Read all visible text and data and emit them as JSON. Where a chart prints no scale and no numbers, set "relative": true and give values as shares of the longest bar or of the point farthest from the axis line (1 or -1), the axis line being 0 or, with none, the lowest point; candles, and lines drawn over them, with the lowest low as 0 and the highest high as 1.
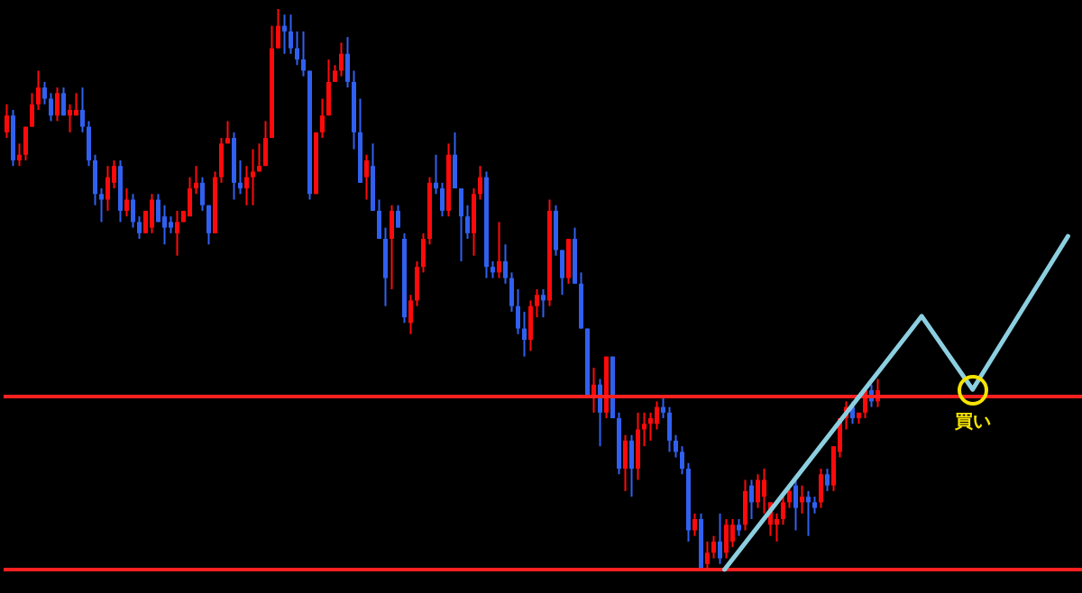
{
  "chart_data": [
    {
      "type": "candlestick",
      "relative": true,
      "grid": false,
      "categories": [
        null,
        null,
        null,
        null,
        null,
        null,
        null,
        null,
        null,
        null,
        null,
        null,
        null,
        null,
        null,
        null,
        null,
        null,
        null,
        null,
        null,
        null,
        null,
        null,
        null,
        null,
        null,
        null,
        null,
        null,
        null,
        null,
        null,
        null,
        null,
        null,
        null,
        null,
        null,
        null,
        null,
        null,
        null,
        null,
        null,
        null,
        null,
        null,
        null,
        null,
        null,
        null,
        null,
        null,
        null,
        null,
        null,
        null,
        null,
        null,
        null,
        null,
        null,
        null,
        null,
        null,
        null,
        null,
        null,
        null,
        null,
        null,
        null,
        null,
        null,
        null,
        null,
        null,
        null,
        null,
        null,
        null,
        null,
        null,
        null,
        null,
        null,
        null,
        null,
        null,
        null,
        null,
        null,
        null,
        null,
        null,
        null,
        null,
        null,
        null,
        null,
        null,
        null,
        null,
        null,
        null,
        null,
        null,
        null,
        null,
        null,
        null,
        null,
        null,
        null,
        null,
        null,
        null,
        null,
        null,
        null,
        null,
        null,
        null,
        null,
        null,
        null,
        null,
        null,
        null,
        null,
        null,
        null,
        null,
        null,
        null,
        null,
        null,
        null
      ],
      "ohlc": [
        [
          0.78,
          0.83,
          0.77,
          0.81
        ],
        [
          0.81,
          0.82,
          0.72,
          0.73
        ],
        [
          0.73,
          0.76,
          0.72,
          0.74
        ],
        [
          0.74,
          0.79,
          0.73,
          0.79
        ],
        [
          0.79,
          0.85,
          0.79,
          0.83
        ],
        [
          0.83,
          0.89,
          0.82,
          0.86
        ],
        [
          0.86,
          0.87,
          0.83,
          0.84
        ],
        [
          0.84,
          0.85,
          0.8,
          0.81
        ],
        [
          0.81,
          0.86,
          0.8,
          0.85
        ],
        [
          0.85,
          0.86,
          0.81,
          0.81
        ],
        [
          0.81,
          0.83,
          0.78,
          0.82
        ],
        [
          0.81,
          0.85,
          0.81,
          0.82
        ],
        [
          0.82,
          0.86,
          0.78,
          0.79
        ],
        [
          0.79,
          0.8,
          0.72,
          0.73
        ],
        [
          0.73,
          0.74,
          0.65,
          0.67
        ],
        [
          0.67,
          0.68,
          0.62,
          0.66
        ],
        [
          0.66,
          0.72,
          0.64,
          0.7
        ],
        [
          0.69,
          0.73,
          0.68,
          0.72
        ],
        [
          0.72,
          0.73,
          0.62,
          0.64
        ],
        [
          0.64,
          0.68,
          0.63,
          0.66
        ],
        [
          0.66,
          0.67,
          0.61,
          0.62
        ],
        [
          0.62,
          0.63,
          0.59,
          0.6
        ],
        [
          0.6,
          0.64,
          0.6,
          0.64
        ],
        [
          0.61,
          0.67,
          0.6,
          0.66
        ],
        [
          0.66,
          0.67,
          0.62,
          0.62
        ],
        [
          0.63,
          0.65,
          0.58,
          0.61
        ],
        [
          0.62,
          0.63,
          0.6,
          0.61
        ],
        [
          0.6,
          0.64,
          0.56,
          0.62
        ],
        [
          0.62,
          0.64,
          0.62,
          0.64
        ],
        [
          0.63,
          0.7,
          0.63,
          0.68
        ],
        [
          0.68,
          0.72,
          0.67,
          0.69
        ],
        [
          0.69,
          0.7,
          0.64,
          0.65
        ],
        [
          0.65,
          0.65,
          0.58,
          0.6
        ],
        [
          0.6,
          0.71,
          0.6,
          0.7
        ],
        [
          0.7,
          0.77,
          0.69,
          0.76
        ],
        [
          0.76,
          0.8,
          0.76,
          0.77
        ],
        [
          0.77,
          0.78,
          0.66,
          0.69
        ],
        [
          0.69,
          0.73,
          0.67,
          0.68
        ],
        [
          0.68,
          0.72,
          0.65,
          0.7
        ],
        [
          0.7,
          0.75,
          0.65,
          0.71
        ],
        [
          0.71,
          0.76,
          0.71,
          0.72
        ],
        [
          0.72,
          0.8,
          0.72,
          0.77
        ],
        [
          0.77,
          0.97,
          0.77,
          0.93
        ],
        [
          0.93,
          1,
          0.93,
          0.97
        ],
        [
          0.97,
          0.99,
          0.92,
          0.96
        ],
        [
          0.96,
          0.99,
          0.92,
          0.93
        ],
        [
          0.93,
          0.96,
          0.9,
          0.91
        ],
        [
          0.91,
          0.96,
          0.88,
          0.89
        ],
        [
          0.89,
          0.89,
          0.66,
          0.67
        ],
        [
          0.67,
          0.78,
          0.67,
          0.78
        ],
        [
          0.78,
          0.84,
          0.77,
          0.81
        ],
        [
          0.81,
          0.91,
          0.81,
          0.87
        ],
        [
          0.87,
          0.9,
          0.87,
          0.89
        ],
        [
          0.89,
          0.94,
          0.88,
          0.92
        ],
        [
          0.92,
          0.95,
          0.86,
          0.87
        ],
        [
          0.87,
          0.89,
          0.75,
          0.78
        ],
        [
          0.78,
          0.84,
          0.69,
          0.69
        ],
        [
          0.7,
          0.74,
          0.66,
          0.73
        ],
        [
          0.72,
          0.76,
          0.64,
          0.64
        ],
        [
          0.64,
          0.66,
          0.59,
          0.59
        ],
        [
          0.59,
          0.61,
          0.47,
          0.52
        ],
        [
          0.59,
          0.65,
          0.5,
          0.64
        ],
        [
          0.64,
          0.65,
          0.61,
          0.61
        ],
        [
          0.59,
          0.6,
          0.44,
          0.45
        ],
        [
          0.44,
          0.49,
          0.42,
          0.48
        ],
        [
          0.48,
          0.55,
          0.47,
          0.54
        ],
        [
          0.54,
          0.6,
          0.53,
          0.59
        ],
        [
          0.59,
          0.7,
          0.58,
          0.69
        ],
        [
          0.69,
          0.74,
          0.67,
          0.68
        ],
        [
          0.68,
          0.69,
          0.63,
          0.64
        ],
        [
          0.64,
          0.76,
          0.63,
          0.74
        ],
        [
          0.74,
          0.78,
          0.68,
          0.68
        ],
        [
          0.68,
          0.68,
          0.55,
          0.63
        ],
        [
          0.63,
          0.65,
          0.59,
          0.6
        ],
        [
          0.6,
          0.68,
          0.56,
          0.67
        ],
        [
          0.67,
          0.72,
          0.66,
          0.7
        ],
        [
          0.7,
          0.71,
          0.52,
          0.54
        ],
        [
          0.54,
          0.55,
          0.52,
          0.53
        ],
        [
          0.53,
          0.62,
          0.52,
          0.55
        ],
        [
          0.55,
          0.58,
          0.51,
          0.52
        ],
        [
          0.52,
          0.53,
          0.46,
          0.47
        ],
        [
          0.47,
          0.5,
          0.42,
          0.43
        ],
        [
          0.43,
          0.46,
          0.38,
          0.41
        ],
        [
          0.41,
          0.48,
          0.39,
          0.47
        ],
        [
          0.47,
          0.5,
          0.45,
          0.49
        ],
        [
          0.49,
          0.5,
          0.45,
          0.48
        ],
        [
          0.48,
          0.66,
          0.47,
          0.64
        ],
        [
          0.64,
          0.65,
          0.56,
          0.57
        ],
        [
          0.57,
          0.57,
          0.49,
          0.52
        ],
        [
          0.52,
          0.59,
          0.51,
          0.59
        ],
        [
          0.59,
          0.61,
          0.51,
          0.51
        ],
        [
          0.51,
          0.53,
          0.43,
          0.43
        ],
        [
          0.43,
          0.43,
          0.31,
          0.31
        ],
        [
          0.31,
          0.36,
          0.28,
          0.33
        ],
        [
          0.33,
          0.34,
          0.22,
          0.28
        ],
        [
          0.28,
          0.38,
          0.27,
          0.38
        ],
        [
          0.38,
          0.38,
          0.27,
          0.27
        ],
        [
          0.27,
          0.28,
          0.17,
          0.18
        ],
        [
          0.18,
          0.24,
          0.14,
          0.23
        ],
        [
          0.23,
          0.24,
          0.13,
          0.18
        ],
        [
          0.18,
          0.28,
          0.16,
          0.25
        ],
        [
          0.25,
          0.28,
          0.22,
          0.26
        ],
        [
          0.26,
          0.28,
          0.23,
          0.27
        ],
        [
          0.26,
          0.3,
          0.25,
          0.29
        ],
        [
          0.29,
          0.31,
          0.27,
          0.28
        ],
        [
          0.28,
          0.29,
          0.21,
          0.23
        ],
        [
          0.23,
          0.24,
          0.2,
          0.21
        ],
        [
          0.21,
          0.22,
          0.17,
          0.18
        ],
        [
          0.18,
          0.19,
          0.05,
          0.07
        ],
        [
          0.07,
          0.1,
          0.06,
          0.09
        ],
        [
          0.09,
          0.1,
          0,
          0
        ],
        [
          0.01,
          0.05,
          0,
          0.03
        ],
        [
          0.03,
          0.06,
          0.02,
          0.05
        ],
        [
          0.05,
          0.1,
          0.01,
          0.02
        ],
        [
          0.03,
          0.09,
          0.02,
          0.08
        ],
        [
          0.05,
          0.09,
          0.04,
          0.08
        ],
        [
          0.08,
          0.09,
          0.06,
          0.07
        ],
        [
          0.08,
          0.16,
          0.07,
          0.14
        ],
        [
          0.15,
          0.16,
          0.09,
          0.12
        ],
        [
          0.12,
          0.17,
          0.11,
          0.16
        ],
        [
          0.13,
          0.18,
          0.1,
          0.16
        ],
        [
          0.08,
          0.12,
          0.06,
          0.12
        ],
        [
          0.08,
          0.1,
          0.05,
          0.09
        ],
        [
          0.09,
          0.13,
          0.08,
          0.12
        ],
        [
          0.12,
          0.15,
          0.11,
          0.14
        ],
        [
          0.15,
          0.16,
          0.07,
          0.11
        ],
        [
          0.12,
          0.15,
          0.1,
          0.13
        ],
        [
          0.13,
          0.14,
          0.06,
          0.12
        ],
        [
          0.12,
          0.13,
          0.1,
          0.11
        ],
        [
          0.12,
          0.18,
          0.11,
          0.17
        ],
        [
          0.17,
          0.18,
          0.14,
          0.15
        ],
        [
          0.15,
          0.22,
          0.14,
          0.22
        ],
        [
          0.21,
          0.27,
          0.2,
          0.27
        ],
        [
          0.27,
          0.3,
          0.25,
          0.29
        ],
        [
          0.29,
          0.3,
          0.26,
          0.27
        ],
        [
          0.27,
          0.28,
          0.26,
          0.28
        ],
        [
          0.28,
          0.32,
          0.27,
          0.32
        ],
        [
          0.32,
          0.33,
          0.29,
          0.3
        ],
        [
          0.3,
          0.34,
          0.29,
          0.32
        ]
      ],
      "ref_lines": [
        {
          "axis": "y",
          "value": 0.31,
          "color": "#ff2020"
        },
        {
          "axis": "y",
          "value": 0,
          "color": "#ff2020"
        }
      ]
    },
    {
      "type": "line",
      "relative": true,
      "grid": false,
      "categories": [
        null,
        null,
        null,
        null,
        null,
        null,
        null,
        null,
        null,
        null,
        null,
        null,
        null,
        null,
        null,
        null,
        null,
        null,
        null,
        null,
        null,
        null,
        null,
        null,
        null,
        null,
        null,
        null,
        null,
        null,
        null,
        null,
        null,
        null,
        null,
        null,
        null,
        null,
        null,
        null,
        null,
        null,
        null,
        null,
        null,
        null,
        null,
        null,
        null,
        null,
        null,
        null,
        null,
        null,
        null
      ],
      "series": [
        {
          "color": "#8ccfe0",
          "values": [
            0,
            null,
            null,
            null,
            null,
            null,
            null,
            null,
            null,
            null,
            null,
            null,
            null,
            null,
            null,
            null,
            null,
            null,
            null,
            null,
            null,
            null,
            null,
            null,
            null,
            null,
            null,
            null,
            null,
            null,
            null,
            0.76,
            null,
            null,
            null,
            null,
            null,
            null,
            null,
            0.54,
            null,
            null,
            null,
            null,
            null,
            null,
            null,
            null,
            null,
            null,
            null,
            null,
            null,
            null,
            1
          ]
        }
      ],
      "annotations": [
        {
          "text": "買い",
          "y": 0.54
        }
      ]
    }
  ]
}
